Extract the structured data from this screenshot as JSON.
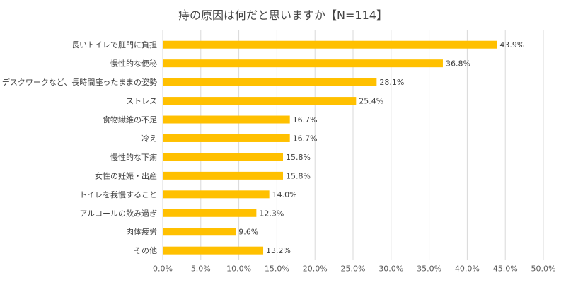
{
  "chart_data": {
    "type": "bar",
    "orientation": "horizontal",
    "title": "痔の原因は何だと思いますか【N=114】",
    "categories": [
      "長いトイレで肛門に負担",
      "慢性的な便秘",
      "デスクワークなど、長時間座ったままの姿勢",
      "ストレス",
      "食物繊維の不足",
      "冷え",
      "慢性的な下痢",
      "女性の妊娠・出産",
      "トイレを我慢すること",
      "アルコールの飲み過ぎ",
      "肉体疲労",
      "その他"
    ],
    "values": [
      43.9,
      36.8,
      28.1,
      25.4,
      16.7,
      16.7,
      15.8,
      15.8,
      14.0,
      12.3,
      9.6,
      13.2
    ],
    "value_labels": [
      "43.9%",
      "36.8%",
      "28.1%",
      "25.4%",
      "16.7%",
      "16.7%",
      "15.8%",
      "15.8%",
      "14.0%",
      "12.3%",
      "9.6%",
      "13.2%"
    ],
    "xlim": [
      0,
      50
    ],
    "xticks": [
      "0.0%",
      "5.0%",
      "10.0%",
      "15.0%",
      "20.0%",
      "25.0%",
      "30.0%",
      "35.0%",
      "40.0%",
      "45.0%",
      "50.0%"
    ],
    "grid": "vertical",
    "legend": "none",
    "bar_color": "#FFC000",
    "grid_color": "#D9D9D9",
    "text_color": "#404040"
  }
}
